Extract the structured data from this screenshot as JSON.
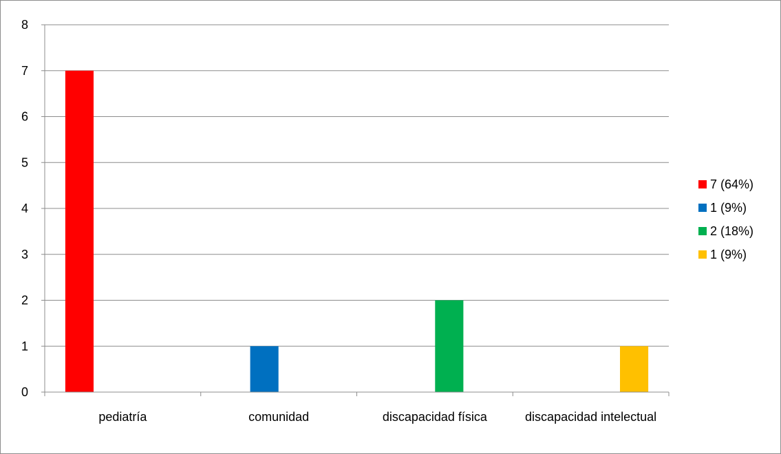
{
  "chart_data": {
    "type": "bar",
    "categories": [
      "pediatría",
      "comunidad",
      "discapacidad física",
      "discapacidad intelectual"
    ],
    "series": [
      {
        "name": "7 (64%)",
        "color": "#ff0000",
        "category_index": 0,
        "value": 7
      },
      {
        "name": "1 (9%)",
        "color": "#0070c0",
        "category_index": 1,
        "value": 1
      },
      {
        "name": "2 (18%)",
        "color": "#00b050",
        "category_index": 2,
        "value": 2
      },
      {
        "name": "1 (9%)",
        "color": "#ffc000",
        "category_index": 3,
        "value": 1
      }
    ],
    "y_ticks": [
      "0",
      "1",
      "2",
      "3",
      "4",
      "5",
      "6",
      "7",
      "8"
    ],
    "ylim": [
      0,
      8
    ],
    "title": "",
    "xlabel": "",
    "ylabel": "",
    "grid": true,
    "legend_position": "right"
  }
}
